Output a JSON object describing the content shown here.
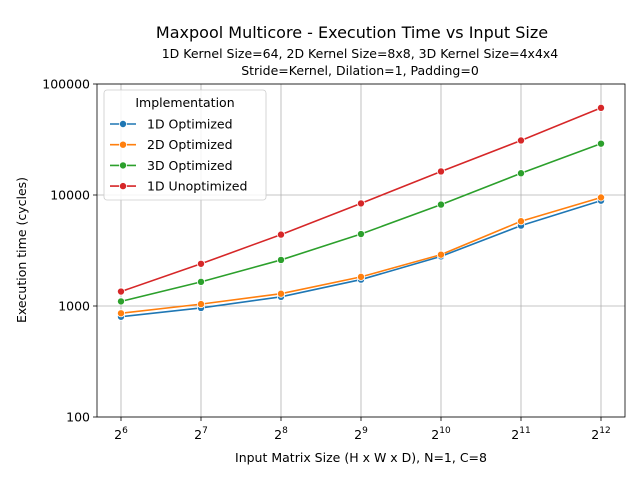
{
  "chart_data": {
    "type": "line",
    "title": "Maxpool Multicore - Execution Time vs Input Size",
    "subtitle_lines": [
      "1D Kernel Size=64, 2D Kernel Size=8x8, 3D Kernel Size=4x4x4",
      "Stride=Kernel, Dilation=1, Padding=0"
    ],
    "xlabel": "Input Matrix Size (H x W x D), N=1, C=8",
    "ylabel": "Execution time (cycles)",
    "x_tick_base": "2",
    "x_exponents": [
      6,
      7,
      8,
      9,
      10,
      11,
      12
    ],
    "y_scale": "log",
    "ylim": [
      100,
      100000
    ],
    "y_ticks": [
      100,
      1000,
      10000,
      100000
    ],
    "y_tick_labels": [
      "100",
      "1000",
      "10000",
      "100000"
    ],
    "grid": true,
    "legend": {
      "title": "Implementation",
      "placement": "upper-left"
    },
    "series": [
      {
        "name": "1D Optimized",
        "color": "#1f77b4",
        "values": [
          800,
          960,
          1210,
          1730,
          2800,
          5300,
          8900
        ]
      },
      {
        "name": "2D Optimized",
        "color": "#ff7f0e",
        "values": [
          860,
          1040,
          1290,
          1830,
          2900,
          5800,
          9500
        ]
      },
      {
        "name": "3D Optimized",
        "color": "#2ca02c",
        "values": [
          1100,
          1650,
          2600,
          4450,
          8200,
          15700,
          29000
        ]
      },
      {
        "name": "1D Unoptimized",
        "color": "#d62728",
        "values": [
          1350,
          2400,
          4400,
          8400,
          16300,
          31000,
          61000
        ]
      }
    ]
  }
}
